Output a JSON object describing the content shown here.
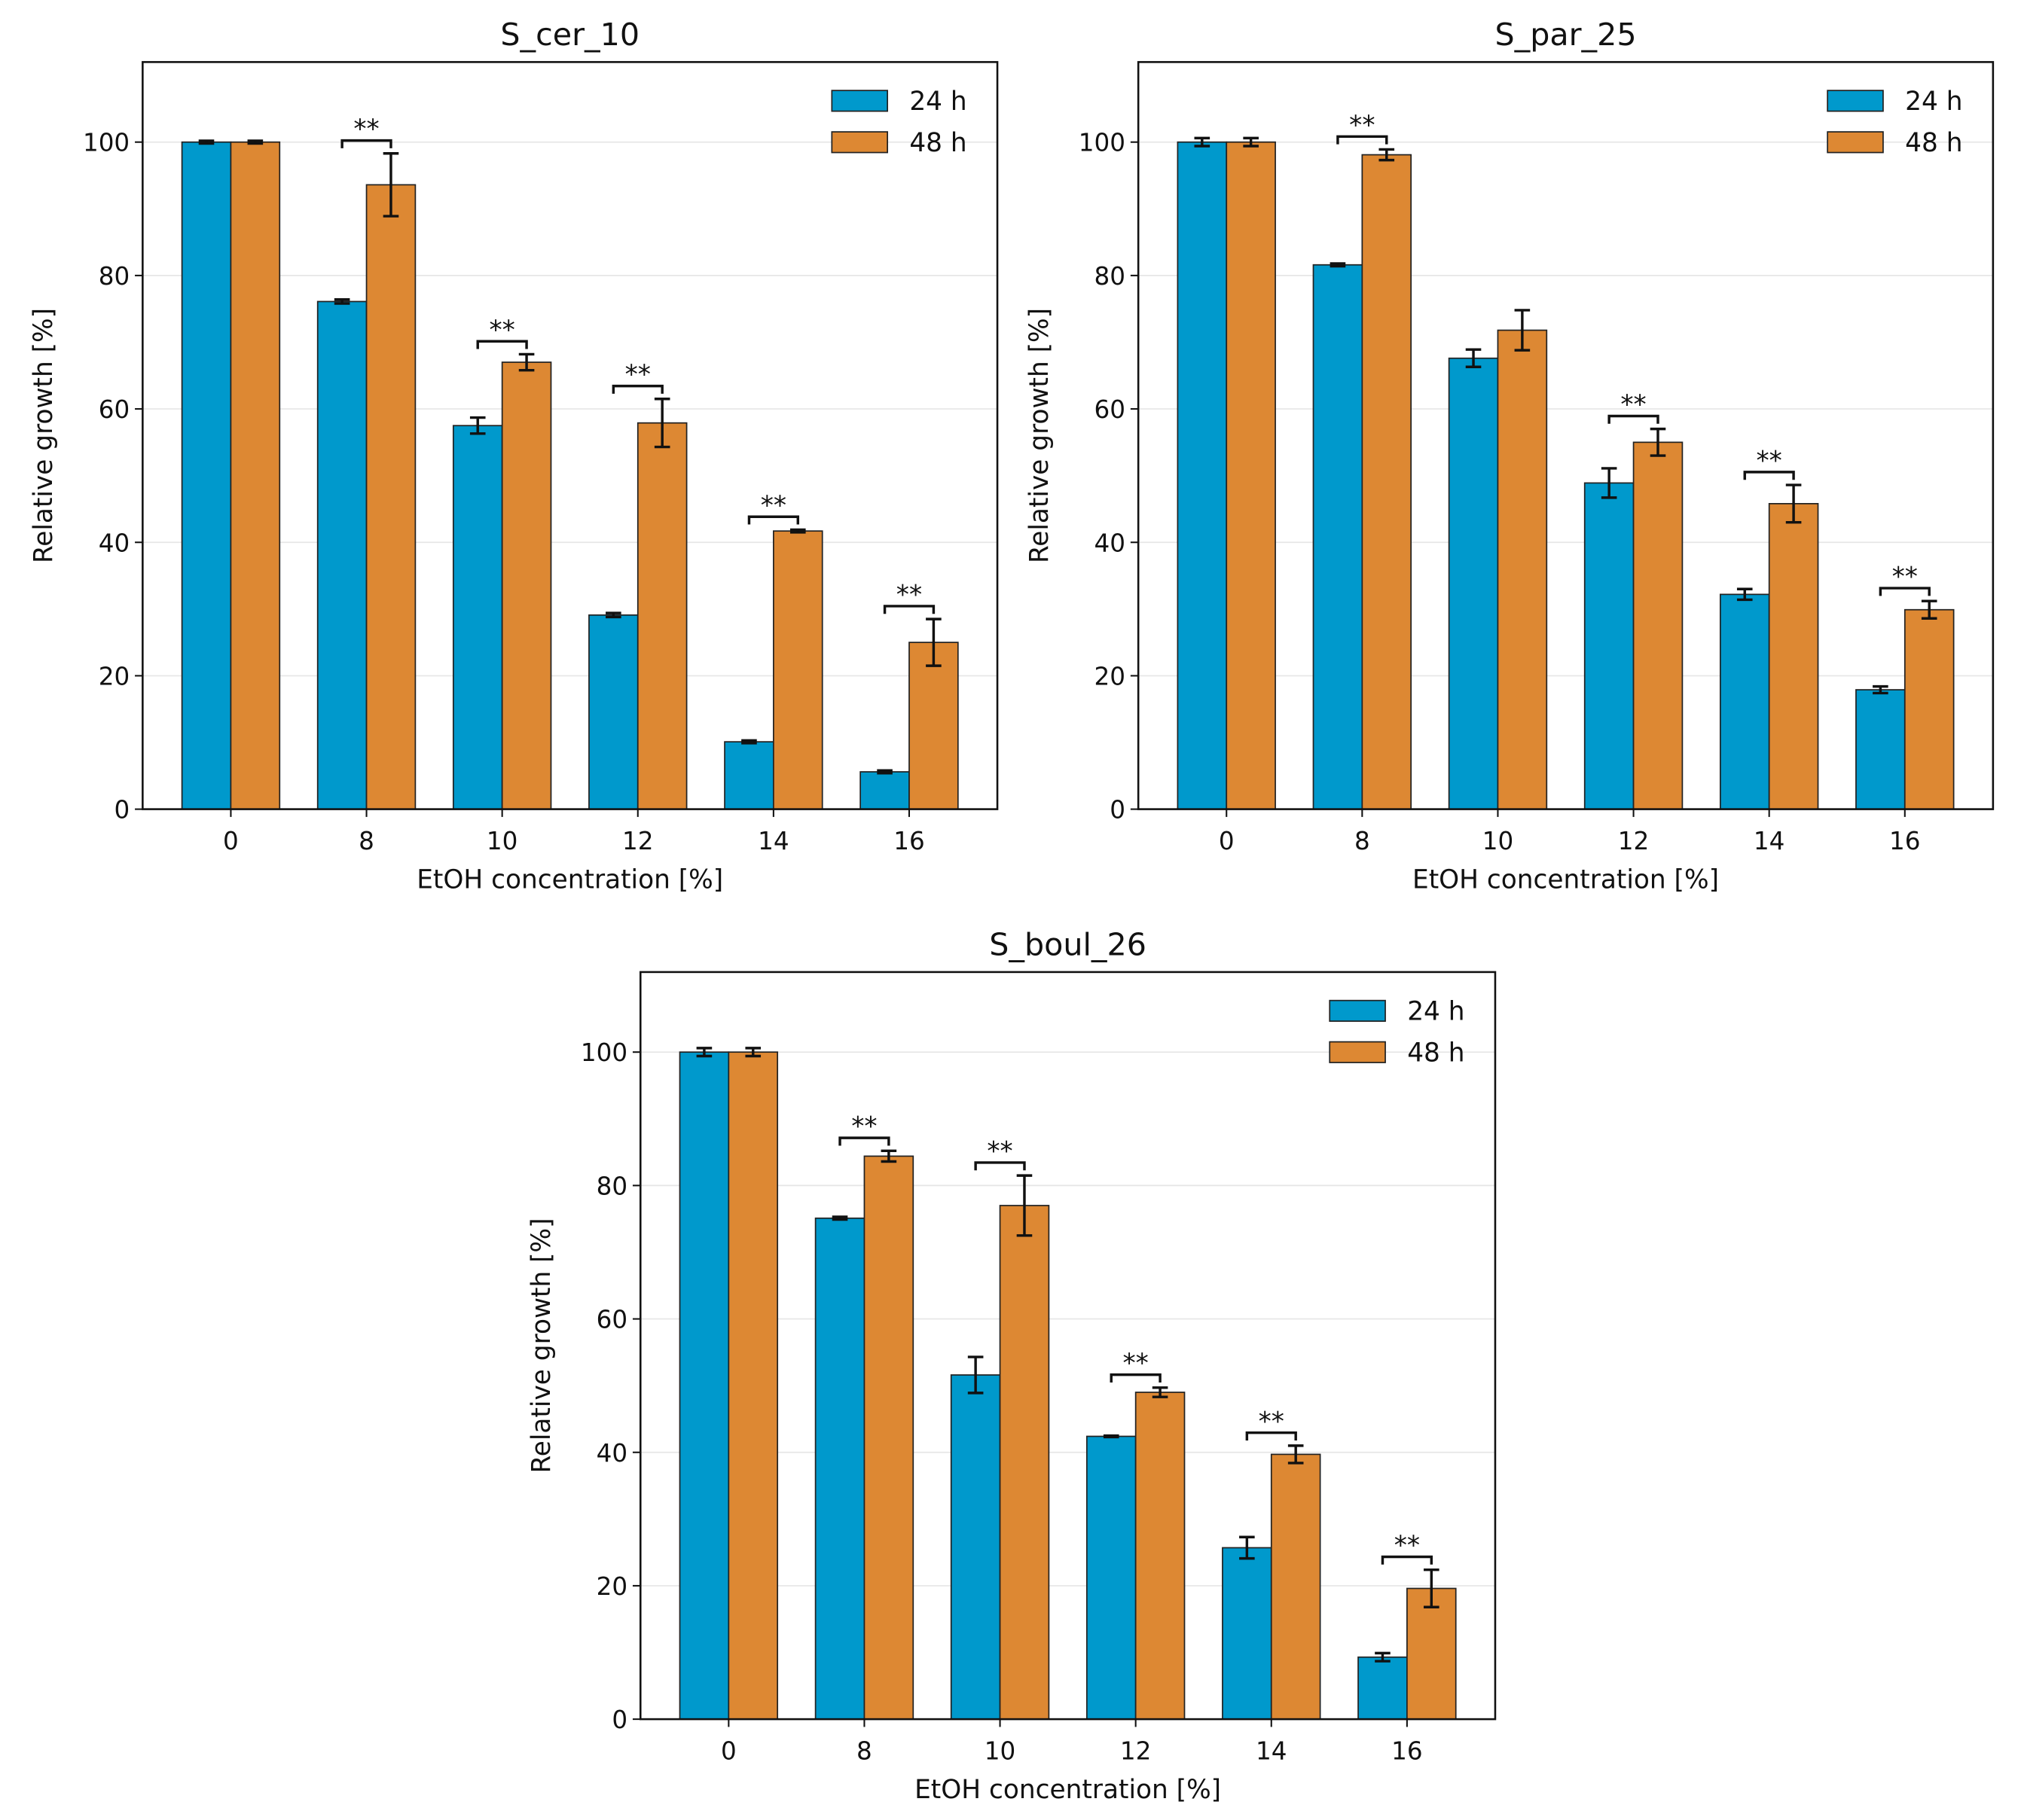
{
  "colors": {
    "24h": "#0099cc",
    "48h": "#dd8833"
  },
  "chart_data": [
    {
      "type": "bar",
      "title": "S_cer_10",
      "xlabel": "EtOH concentration [%]",
      "ylabel": "Relative growth [%]",
      "categories": [
        "0",
        "8",
        "10",
        "12",
        "14",
        "16"
      ],
      "ylim": [
        0,
        112
      ],
      "yticks": [
        0,
        20,
        40,
        60,
        80,
        100
      ],
      "grid": true,
      "legend": "top-right",
      "series": [
        {
          "name": "24 h",
          "values": [
            100,
            76.1,
            57.5,
            29.1,
            10.1,
            5.6
          ],
          "errors": [
            0.2,
            0.3,
            1.2,
            0.3,
            0.2,
            0.2
          ]
        },
        {
          "name": "48 h",
          "values": [
            100,
            93.6,
            67,
            57.9,
            41.7,
            25
          ],
          "errors": [
            0.2,
            4.7,
            1.2,
            3.6,
            0.2,
            3.5
          ]
        }
      ],
      "significance": {
        "label": "**",
        "categories": [
          "8",
          "10",
          "12",
          "14",
          "16"
        ]
      }
    },
    {
      "type": "bar",
      "title": "S_par_25",
      "xlabel": "EtOH concentration [%]",
      "ylabel": "Relative growth [%]",
      "categories": [
        "0",
        "8",
        "10",
        "12",
        "14",
        "16"
      ],
      "ylim": [
        0,
        112
      ],
      "yticks": [
        0,
        20,
        40,
        60,
        80,
        100
      ],
      "grid": true,
      "legend": "top-right",
      "series": [
        {
          "name": "24 h",
          "values": [
            100,
            81.6,
            67.6,
            48.9,
            32.2,
            17.9
          ],
          "errors": [
            0.6,
            0.2,
            1.3,
            2.2,
            0.8,
            0.5
          ]
        },
        {
          "name": "48 h",
          "values": [
            100,
            98.1,
            71.8,
            55,
            45.8,
            29.9
          ],
          "errors": [
            0.6,
            0.8,
            3.0,
            2.0,
            2.8,
            1.3
          ]
        }
      ],
      "significance": {
        "label": "**",
        "categories": [
          "8",
          "12",
          "14",
          "16"
        ]
      }
    },
    {
      "type": "bar",
      "title": "S_boul_26",
      "xlabel": "EtOH concentration [%]",
      "ylabel": "Relative growth [%]",
      "categories": [
        "0",
        "8",
        "10",
        "12",
        "14",
        "16"
      ],
      "ylim": [
        0,
        112
      ],
      "yticks": [
        0,
        20,
        40,
        60,
        80,
        100
      ],
      "grid": true,
      "legend": "top-right",
      "series": [
        {
          "name": "24 h",
          "values": [
            100,
            75.1,
            51.6,
            42.4,
            25.7,
            9.3
          ],
          "errors": [
            0.6,
            0.2,
            2.7,
            0.1,
            1.6,
            0.6
          ]
        },
        {
          "name": "48 h",
          "values": [
            100,
            84.4,
            77,
            49,
            39.7,
            19.6
          ],
          "errors": [
            0.6,
            0.8,
            4.5,
            0.7,
            1.3,
            2.8
          ]
        }
      ],
      "significance": {
        "label": "**",
        "categories": [
          "8",
          "10",
          "12",
          "14",
          "16"
        ]
      }
    }
  ]
}
